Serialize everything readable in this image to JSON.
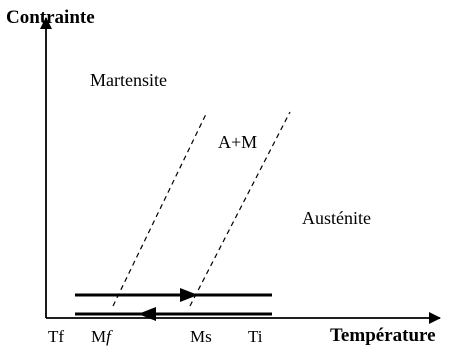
{
  "y_axis_title": "Contrainte",
  "x_axis_title": "Température",
  "regions": {
    "martensite": "Martensite",
    "mixed": "A+M",
    "austenite": "Austénite"
  },
  "temperature_ticks": {
    "tf": "Tf",
    "mf_letter": "M",
    "mf_subscript": "f",
    "ms": "Ms",
    "ti": "Ti"
  }
}
